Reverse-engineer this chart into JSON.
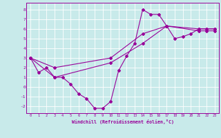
{
  "xlabel": "Windchill (Refroidissement éolien,°C)",
  "background_color": "#c8eaea",
  "line_color": "#990099",
  "grid_color": "#ffffff",
  "xlim": [
    -0.5,
    23.5
  ],
  "ylim": [
    -2.7,
    8.7
  ],
  "xticks": [
    0,
    1,
    2,
    3,
    4,
    5,
    6,
    7,
    8,
    9,
    10,
    11,
    12,
    13,
    14,
    15,
    16,
    17,
    18,
    19,
    20,
    21,
    22,
    23
  ],
  "yticks": [
    -2,
    -1,
    0,
    1,
    2,
    3,
    4,
    5,
    6,
    7,
    8
  ],
  "series": [
    {
      "x": [
        0,
        1,
        2,
        3,
        4,
        5,
        6,
        7,
        8,
        9,
        10,
        11,
        12,
        13,
        14,
        15,
        16,
        17,
        18,
        19,
        20,
        21,
        22,
        23
      ],
      "y": [
        3.0,
        1.5,
        2.0,
        1.0,
        1.0,
        0.3,
        -0.7,
        -1.2,
        -2.2,
        -2.2,
        -1.5,
        1.7,
        3.2,
        4.5,
        8.0,
        7.5,
        7.5,
        6.3,
        5.0,
        5.2,
        5.5,
        6.0,
        6.0,
        6.0
      ]
    },
    {
      "x": [
        0,
        3,
        10,
        14,
        17,
        21,
        22,
        23
      ],
      "y": [
        3.0,
        2.0,
        3.0,
        5.5,
        6.3,
        6.0,
        6.0,
        6.0
      ]
    },
    {
      "x": [
        0,
        3,
        10,
        14,
        17,
        21,
        22,
        23
      ],
      "y": [
        3.0,
        1.0,
        2.5,
        4.5,
        6.3,
        5.8,
        5.8,
        5.8
      ]
    }
  ]
}
